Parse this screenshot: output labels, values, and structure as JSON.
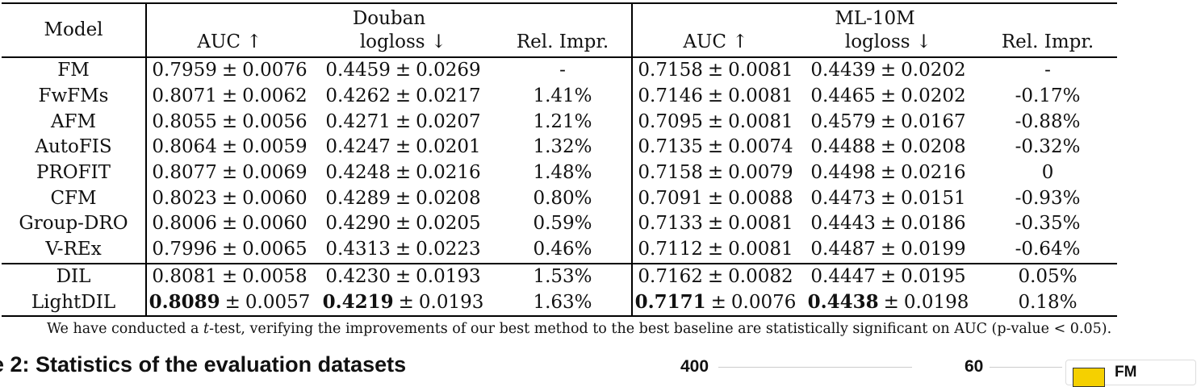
{
  "table": {
    "model_header": "Model",
    "datasets": [
      "Douban",
      "ML-10M"
    ],
    "metric_headers": [
      "AUC ↑",
      "logloss ↓",
      "Rel. Impr.",
      "AUC ↑",
      "logloss ↓",
      "Rel. Impr."
    ],
    "pm": "±",
    "rows": [
      {
        "model": "FM",
        "cells": [
          [
            "0.7959",
            "0.0076"
          ],
          [
            "0.4459",
            "0.0269"
          ],
          "-",
          [
            "0.7158",
            "0.0081"
          ],
          [
            "0.4439",
            "0.0202"
          ],
          "-"
        ]
      },
      {
        "model": "FwFMs",
        "cells": [
          [
            "0.8071",
            "0.0062"
          ],
          [
            "0.4262",
            "0.0217"
          ],
          "1.41%",
          [
            "0.7146",
            "0.0081"
          ],
          [
            "0.4465",
            "0.0202"
          ],
          "-0.17%"
        ]
      },
      {
        "model": "AFM",
        "cells": [
          [
            "0.8055",
            "0.0056"
          ],
          [
            "0.4271",
            "0.0207"
          ],
          "1.21%",
          [
            "0.7095",
            "0.0081"
          ],
          [
            "0.4579",
            "0.0167"
          ],
          "-0.88%"
        ]
      },
      {
        "model": "AutoFIS",
        "cells": [
          [
            "0.8064",
            "0.0059"
          ],
          [
            "0.4247",
            "0.0201"
          ],
          "1.32%",
          [
            "0.7135",
            "0.0074"
          ],
          [
            "0.4488",
            "0.0208"
          ],
          "-0.32%"
        ]
      },
      {
        "model": "PROFIT",
        "cells": [
          [
            "0.8077",
            "0.0069"
          ],
          [
            "0.4248",
            "0.0216"
          ],
          "1.48%",
          [
            "0.7158",
            "0.0079"
          ],
          [
            "0.4498",
            "0.0216"
          ],
          "0"
        ]
      },
      {
        "model": "CFM",
        "cells": [
          [
            "0.8023",
            "0.0060"
          ],
          [
            "0.4289",
            "0.0208"
          ],
          "0.80%",
          [
            "0.7091",
            "0.0088"
          ],
          [
            "0.4473",
            "0.0151"
          ],
          "-0.93%"
        ]
      },
      {
        "model": "Group-DRO",
        "cells": [
          [
            "0.8006",
            "0.0060"
          ],
          [
            "0.4290",
            "0.0205"
          ],
          "0.59%",
          [
            "0.7133",
            "0.0081"
          ],
          [
            "0.4443",
            "0.0186"
          ],
          "-0.35%"
        ]
      },
      {
        "model": "V-REx",
        "cells": [
          [
            "0.7996",
            "0.0065"
          ],
          [
            "0.4313",
            "0.0223"
          ],
          "0.46%",
          [
            "0.7112",
            "0.0081"
          ],
          [
            "0.4487",
            "0.0199"
          ],
          "-0.64%"
        ]
      },
      {
        "model": "DIL",
        "cells": [
          [
            "0.8081",
            "0.0058"
          ],
          [
            "0.4230",
            "0.0193"
          ],
          "1.53%",
          [
            "0.7162",
            "0.0082"
          ],
          [
            "0.4447",
            "0.0195"
          ],
          "0.05%"
        ]
      },
      {
        "model": "LightDIL",
        "cells": [
          [
            "0.8089",
            "0.0057",
            true
          ],
          [
            "0.4219",
            "0.0193",
            true
          ],
          "1.63%",
          [
            "0.7171",
            "0.0076",
            true
          ],
          [
            "0.4438",
            "0.0198",
            true
          ],
          "0.18%"
        ]
      }
    ]
  },
  "footnote": {
    "before": "We have conducted a ",
    "t": "t",
    "after": "-test, verifying the improvements of our best method to the best baseline are statistically significant on AUC (p-value < 0.05)."
  },
  "next_caption": "e 2: Statistics of the evaluation datasets",
  "chart_fragments": {
    "left_top_tick": "400",
    "right_top_tick": "60",
    "legend_label": "FM",
    "legend_color": "#f5d000"
  }
}
